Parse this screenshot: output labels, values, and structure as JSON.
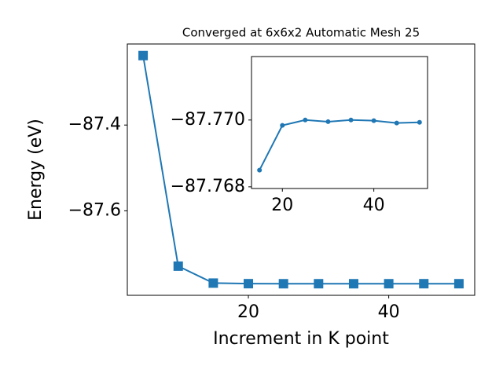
{
  "chart_data": [
    {
      "type": "line",
      "title": "Converged at 6x6x2 Automatic Mesh 25",
      "xlabel": "Increment in K point",
      "ylabel": "Energy (eV)",
      "x": [
        5,
        10,
        15,
        20,
        25,
        30,
        35,
        40,
        45,
        50
      ],
      "values": [
        -87.238,
        -87.729,
        -87.7685,
        -87.76984,
        -87.77,
        -87.76995,
        -87.77,
        -87.76998,
        -87.76991,
        -87.76993
      ],
      "color": "#1f77b4",
      "marker": "square",
      "xlim": [
        2.75,
        52.25
      ],
      "ylim": [
        -87.797,
        -87.211
      ],
      "xticks": [
        20,
        40
      ],
      "yticks": [
        {
          "value": -87.4,
          "label": "−87.4"
        },
        {
          "value": -87.6,
          "label": "−87.6"
        }
      ]
    },
    {
      "type": "line",
      "x": [
        15,
        20,
        25,
        30,
        35,
        40,
        45,
        50
      ],
      "values": [
        -87.7685,
        -87.76984,
        -87.77,
        -87.76995,
        -87.77,
        -87.76998,
        -87.76991,
        -87.76993
      ],
      "color": "#1f77b4",
      "marker": "circle",
      "xlim": [
        13.25,
        51.75
      ],
      "ylim": [
        -87.76795,
        -87.7719
      ],
      "xticks": [
        20,
        40
      ],
      "yticks": [
        {
          "value": -87.77,
          "label": "−87.770"
        },
        {
          "value": -87.768,
          "label": "−87.768"
        }
      ]
    }
  ]
}
